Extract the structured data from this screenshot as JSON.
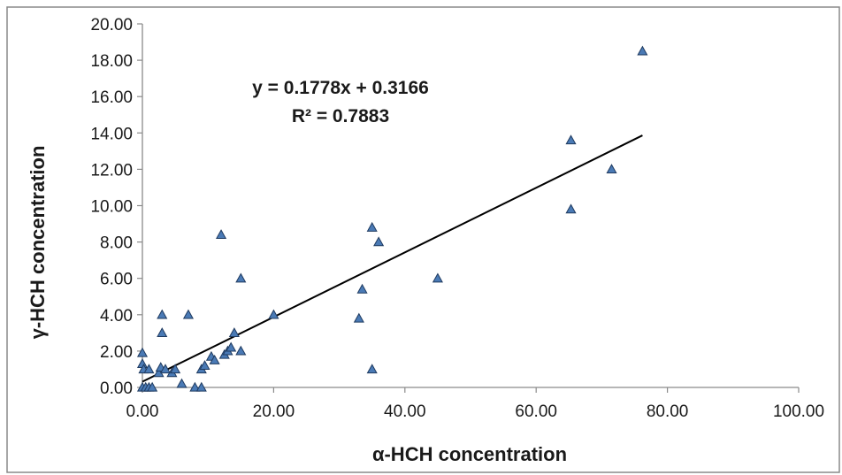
{
  "chart_data": {
    "type": "scatter",
    "xlabel": "α-HCH concentration",
    "ylabel": "γ-HCH concentration",
    "xlim": [
      0,
      100
    ],
    "ylim": [
      0,
      20
    ],
    "x_ticks": [
      "0.00",
      "20.00",
      "40.00",
      "60.00",
      "80.00",
      "100.00"
    ],
    "y_ticks": [
      "0.00",
      "2.00",
      "4.00",
      "6.00",
      "8.00",
      "10.00",
      "12.00",
      "14.00",
      "16.00",
      "18.00",
      "20.00"
    ],
    "grid": false,
    "legend": "none",
    "marker": "triangle",
    "marker_color": "#4a7ab5",
    "trendline": {
      "type": "linear",
      "slope": 0.1778,
      "intercept": 0.3166,
      "x_range": [
        0,
        76.2
      ],
      "equation": "y = 0.1778x + 0.3166",
      "r_squared": "R² = 0.7883"
    },
    "points": [
      [
        0.0,
        1.9
      ],
      [
        0.0,
        1.3
      ],
      [
        0.2,
        1.0
      ],
      [
        0.0,
        0.0
      ],
      [
        0.5,
        0.0
      ],
      [
        1.0,
        1.0
      ],
      [
        1.0,
        0.0
      ],
      [
        1.5,
        0.0
      ],
      [
        2.5,
        0.8
      ],
      [
        2.8,
        1.1
      ],
      [
        3.0,
        4.0
      ],
      [
        3.0,
        3.0
      ],
      [
        3.5,
        1.0
      ],
      [
        4.5,
        0.8
      ],
      [
        5.0,
        1.0
      ],
      [
        6.0,
        0.2
      ],
      [
        7.0,
        4.0
      ],
      [
        8.0,
        0.0
      ],
      [
        9.0,
        0.0
      ],
      [
        9.0,
        1.0
      ],
      [
        9.5,
        1.2
      ],
      [
        10.5,
        1.7
      ],
      [
        11.0,
        1.5
      ],
      [
        12.0,
        8.4
      ],
      [
        12.5,
        1.8
      ],
      [
        13.0,
        2.0
      ],
      [
        13.5,
        2.2
      ],
      [
        14.0,
        3.0
      ],
      [
        15.0,
        2.0
      ],
      [
        15.0,
        6.0
      ],
      [
        20.0,
        4.0
      ],
      [
        33.0,
        3.8
      ],
      [
        33.5,
        5.4
      ],
      [
        35.0,
        8.8
      ],
      [
        35.0,
        1.0
      ],
      [
        36.0,
        8.0
      ],
      [
        45.0,
        6.0
      ],
      [
        65.3,
        13.6
      ],
      [
        65.3,
        9.8
      ],
      [
        71.5,
        12.0
      ],
      [
        76.2,
        18.5
      ]
    ]
  }
}
